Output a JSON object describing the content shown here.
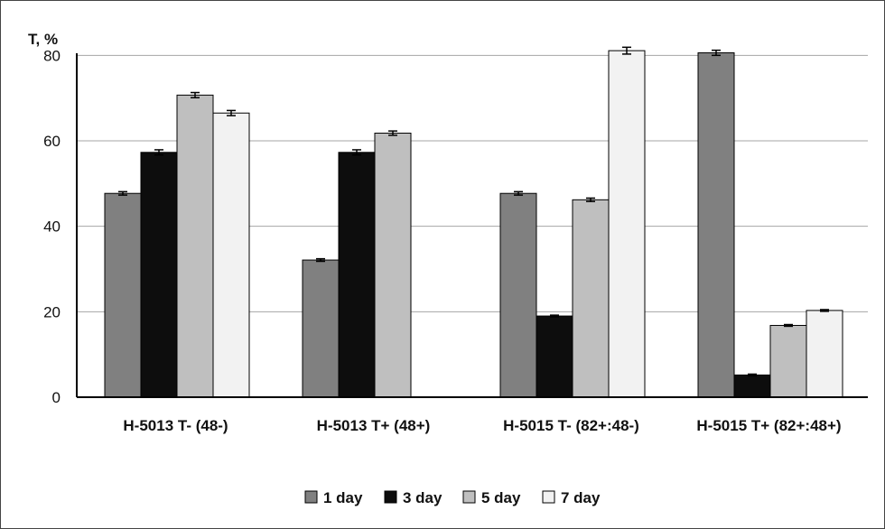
{
  "chart_data": {
    "type": "bar",
    "ylabel": "T, %",
    "xlabel": "",
    "ylim": [
      0,
      90
    ],
    "yticks": [
      0,
      20,
      40,
      60,
      80
    ],
    "grid": true,
    "legend_position": "bottom",
    "categories": [
      "H-5013 T- (48-)",
      "H-5013 T+ (48+)",
      "H-5015 T- (82+:48-)",
      "H-5015 T+ (82+:48+)"
    ],
    "series": [
      {
        "name": "1 day",
        "color": "#808080",
        "values": [
          47.7,
          32.1,
          47.7,
          80.6
        ],
        "errors": [
          0.4,
          0.3,
          0.4,
          0.6
        ]
      },
      {
        "name": "3 day",
        "color": "#0d0d0d",
        "values": [
          57.3,
          57.3,
          19.0,
          5.2
        ],
        "errors": [
          0.6,
          0.6,
          0.2,
          0.2
        ]
      },
      {
        "name": "5 day",
        "color": "#bfbfbf",
        "values": [
          70.7,
          61.8,
          46.2,
          16.8
        ],
        "errors": [
          0.6,
          0.5,
          0.4,
          0.2
        ]
      },
      {
        "name": "7 day",
        "color": "#f2f2f2",
        "values": [
          66.5,
          null,
          81.1,
          20.3
        ],
        "errors": [
          0.6,
          null,
          0.8,
          0.2
        ]
      }
    ]
  }
}
